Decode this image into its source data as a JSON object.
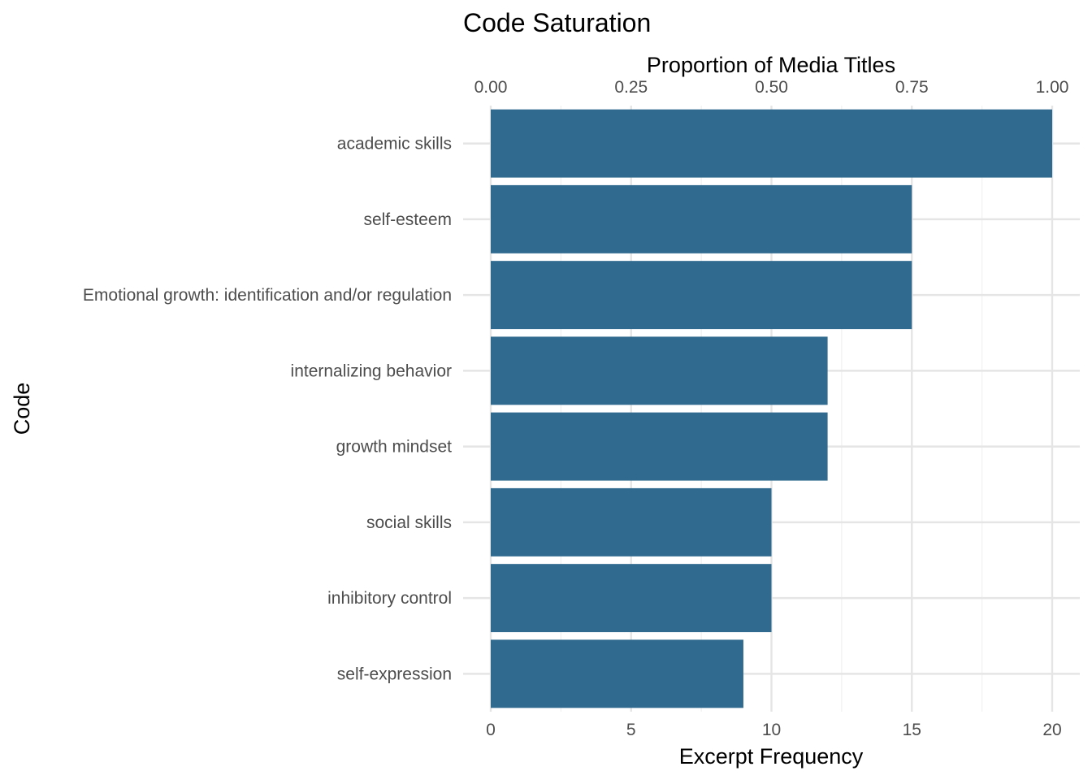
{
  "chart_data": {
    "type": "bar",
    "orientation": "horizontal",
    "title": "Code Saturation",
    "xlabel": "Excerpt Frequency",
    "ylabel": "Code",
    "secondary_xlabel": "Proportion of Media Titles",
    "categories": [
      "academic skills",
      "self-esteem",
      "Emotional growth: identification and/or regulation",
      "internalizing behavior",
      "growth mindset",
      "social skills",
      "inhibitory control",
      "self-expression"
    ],
    "values": [
      20,
      15,
      15,
      12,
      12,
      10,
      10,
      9
    ],
    "xlim": [
      0,
      20
    ],
    "x_ticks": [
      "0",
      "5",
      "10",
      "15",
      "20"
    ],
    "secondary_xlim": [
      0,
      1
    ],
    "secondary_x_ticks": [
      "0.00",
      "0.25",
      "0.50",
      "0.75",
      "1.00"
    ],
    "bar_color": "#306B8F",
    "grid": true,
    "legend": "none"
  }
}
